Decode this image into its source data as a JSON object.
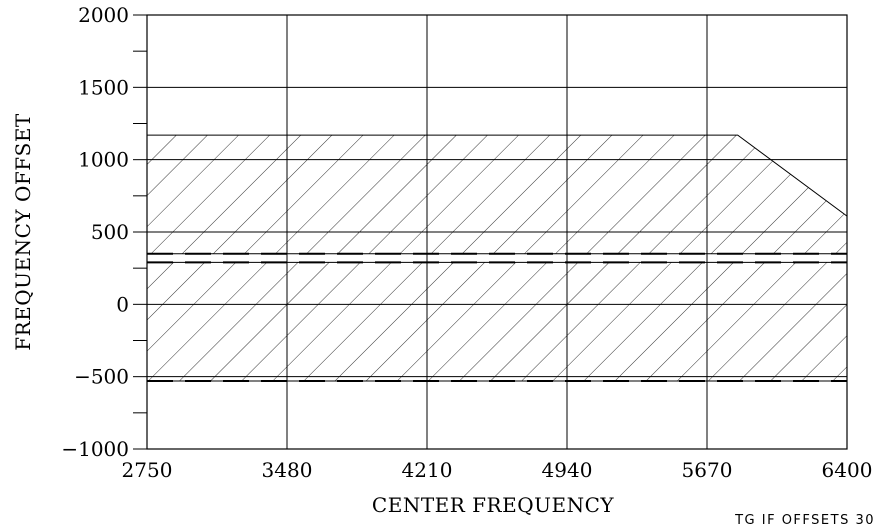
{
  "chart_data": {
    "type": "area",
    "title": "",
    "xlabel": "CENTER FREQUENCY",
    "ylabel": "FREQUENCY OFFSET",
    "xlim": [
      2750,
      6400
    ],
    "ylim": [
      -1000,
      2000
    ],
    "x_ticks": [
      2750,
      3480,
      4210,
      4940,
      5670,
      6400
    ],
    "x_tick_labels": [
      "2750",
      "3480",
      "4210",
      "4940",
      "5670",
      "6400"
    ],
    "y_ticks": [
      -1000,
      -500,
      0,
      500,
      1000,
      1500,
      2000
    ],
    "y_tick_labels": [
      "−1000",
      "−500",
      "0",
      "500",
      "1000",
      "1500",
      "2000"
    ],
    "y_minor_step": 250,
    "grid": true,
    "hatch": "diagonal",
    "regions": [
      {
        "points": [
          [
            2750,
            1170
          ],
          [
            5830,
            1170
          ],
          [
            6400,
            610
          ],
          [
            6400,
            350
          ],
          [
            2750,
            350
          ]
        ]
      },
      {
        "points": [
          [
            2750,
            290
          ],
          [
            6400,
            290
          ],
          [
            6400,
            -530
          ],
          [
            2750,
            -530
          ]
        ]
      }
    ],
    "dashed_lines_y": [
      350,
      290,
      -530
    ],
    "caption": "TG IF OFFSETS   30"
  }
}
